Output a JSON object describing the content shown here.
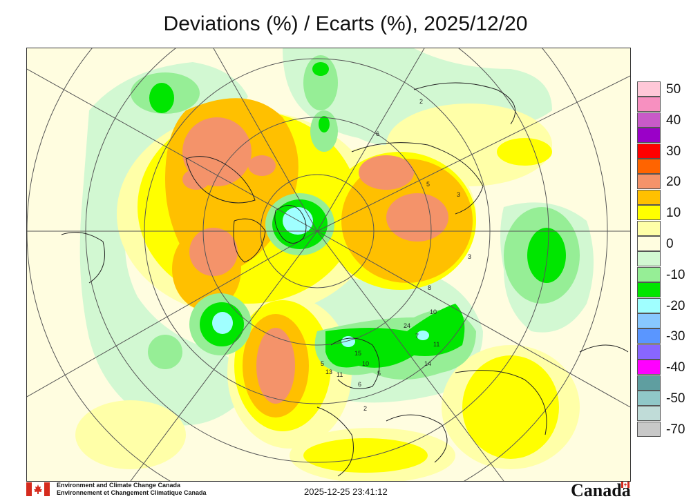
{
  "title": "Deviations (%) / Ecarts (%), 2025/12/20",
  "legend": {
    "items": [
      {
        "label": "50",
        "color": "#ffc8d8"
      },
      {
        "label": "",
        "color": "#f790c0"
      },
      {
        "label": "40",
        "color": "#c85ac8"
      },
      {
        "label": "",
        "color": "#9a00c8"
      },
      {
        "label": "30",
        "color": "#ff0000"
      },
      {
        "label": "",
        "color": "#ff6400"
      },
      {
        "label": "20",
        "color": "#f4936a"
      },
      {
        "label": "",
        "color": "#ffc000"
      },
      {
        "label": "10",
        "color": "#ffff00"
      },
      {
        "label": "",
        "color": "#ffffa8"
      },
      {
        "label": "0",
        "color": "#fffde0"
      },
      {
        "label": "",
        "color": "#d2f8d2"
      },
      {
        "label": "-10",
        "color": "#96ee96"
      },
      {
        "label": "",
        "color": "#00e600"
      },
      {
        "label": "-20",
        "color": "#a0ffff"
      },
      {
        "label": "",
        "color": "#88c8ff"
      },
      {
        "label": "-30",
        "color": "#5a96ff"
      },
      {
        "label": "",
        "color": "#8866ff"
      },
      {
        "label": "-40",
        "color": "#ff00ff"
      },
      {
        "label": "",
        "color": "#5f9ea0"
      },
      {
        "label": "-50",
        "color": "#90c8c8"
      },
      {
        "label": "",
        "color": "#c0dcd8"
      },
      {
        "label": "-70",
        "color": "#c8c8c8"
      }
    ]
  },
  "stations": [
    "2",
    "6",
    "5",
    "3",
    "3",
    "8",
    "24",
    "10",
    "7",
    "11",
    "14",
    "15",
    "10",
    "5",
    "6",
    "13",
    "11",
    "2",
    "5"
  ],
  "footer": {
    "agency_en": "Environment and Climate Change Canada",
    "agency_fr": "Environnement et Changement Climatique Canada",
    "timestamp": "2025-12-25 23:41:12",
    "wordmark": "Canada"
  }
}
